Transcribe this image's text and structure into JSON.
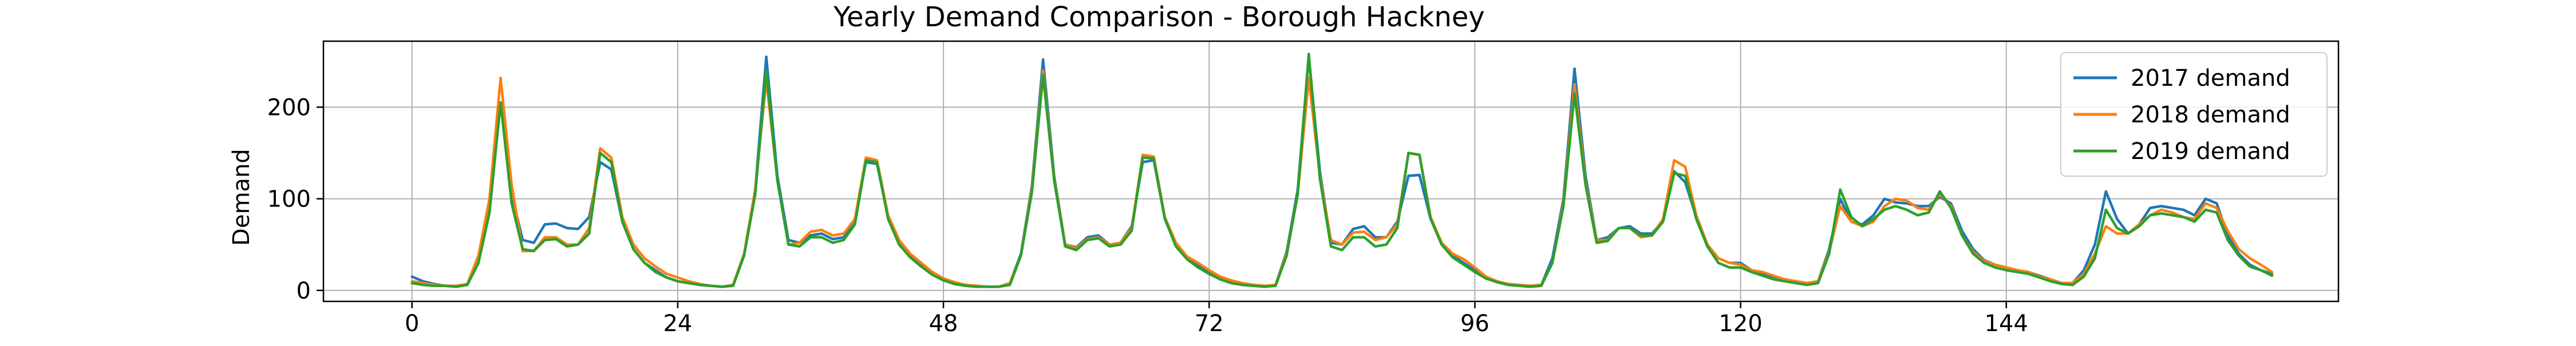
{
  "chart_data": {
    "type": "line",
    "title": "Yearly Demand Comparison - Borough Hackney",
    "xlabel": "",
    "ylabel": "Demand",
    "xlim": [
      -8,
      174
    ],
    "ylim": [
      -12,
      272
    ],
    "xticks": [
      0,
      24,
      48,
      72,
      96,
      120,
      144
    ],
    "yticks": [
      0,
      100,
      200
    ],
    "grid": true,
    "legend": {
      "position": "top-right"
    },
    "series": [
      {
        "name": "2017 demand",
        "color": "#1f77b4",
        "values": [
          15,
          10,
          7,
          5,
          4,
          7,
          35,
          90,
          205,
          105,
          55,
          52,
          72,
          73,
          68,
          67,
          80,
          140,
          132,
          75,
          45,
          30,
          22,
          14,
          10,
          8,
          6,
          5,
          4,
          6,
          40,
          110,
          255,
          125,
          55,
          52,
          60,
          62,
          56,
          58,
          78,
          140,
          138,
          80,
          55,
          38,
          28,
          18,
          12,
          8,
          6,
          5,
          4,
          4,
          8,
          40,
          115,
          252,
          125,
          50,
          47,
          58,
          60,
          50,
          52,
          70,
          140,
          142,
          78,
          50,
          36,
          28,
          20,
          14,
          10,
          8,
          6,
          4,
          6,
          42,
          110,
          255,
          130,
          52,
          50,
          67,
          70,
          58,
          58,
          75,
          125,
          126,
          78,
          52,
          38,
          30,
          22,
          14,
          10,
          7,
          6,
          5,
          6,
          35,
          100,
          242,
          125,
          55,
          58,
          68,
          70,
          62,
          62,
          76,
          130,
          118,
          80,
          50,
          35,
          30,
          30,
          22,
          18,
          15,
          12,
          10,
          8,
          10,
          45,
          100,
          75,
          72,
          82,
          100,
          96,
          95,
          92,
          92,
          102,
          95,
          65,
          45,
          33,
          28,
          25,
          22,
          20,
          16,
          12,
          8,
          8,
          22,
          50,
          108,
          78,
          62,
          72,
          90,
          92,
          90,
          88,
          82,
          100,
          95,
          60,
          40,
          28,
          22,
          18
        ]
      },
      {
        "name": "2018 demand",
        "color": "#ff7f0e",
        "values": [
          10,
          8,
          6,
          5,
          5,
          7,
          38,
          100,
          232,
          115,
          43,
          43,
          58,
          58,
          50,
          50,
          68,
          155,
          145,
          80,
          50,
          35,
          26,
          18,
          14,
          10,
          7,
          5,
          4,
          6,
          40,
          110,
          230,
          120,
          50,
          52,
          64,
          66,
          60,
          62,
          78,
          145,
          142,
          82,
          55,
          40,
          30,
          20,
          13,
          9,
          6,
          5,
          4,
          4,
          8,
          38,
          112,
          240,
          122,
          50,
          46,
          56,
          58,
          50,
          52,
          68,
          148,
          146,
          80,
          52,
          37,
          30,
          22,
          15,
          11,
          8,
          6,
          5,
          6,
          40,
          105,
          232,
          125,
          55,
          50,
          63,
          64,
          55,
          58,
          72,
          150,
          148,
          80,
          52,
          40,
          34,
          25,
          15,
          10,
          7,
          6,
          5,
          6,
          30,
          95,
          225,
          118,
          55,
          55,
          68,
          68,
          58,
          60,
          78,
          142,
          135,
          82,
          50,
          35,
          30,
          28,
          22,
          20,
          16,
          12,
          10,
          8,
          10,
          42,
          92,
          75,
          70,
          75,
          92,
          100,
          98,
          90,
          88,
          105,
          92,
          60,
          42,
          32,
          28,
          25,
          22,
          20,
          15,
          12,
          8,
          8,
          18,
          40,
          70,
          62,
          62,
          72,
          82,
          88,
          85,
          80,
          78,
          95,
          90,
          65,
          45,
          35,
          28,
          20
        ]
      },
      {
        "name": "2019 demand",
        "color": "#2ca02c",
        "values": [
          8,
          6,
          5,
          5,
          4,
          6,
          30,
          85,
          205,
          95,
          45,
          43,
          55,
          56,
          48,
          50,
          62,
          150,
          140,
          75,
          45,
          30,
          20,
          14,
          10,
          8,
          6,
          5,
          4,
          5,
          38,
          105,
          240,
          120,
          50,
          48,
          58,
          58,
          52,
          55,
          72,
          142,
          140,
          78,
          50,
          36,
          26,
          17,
          11,
          7,
          5,
          4,
          4,
          4,
          6,
          38,
          108,
          235,
          120,
          48,
          44,
          55,
          57,
          48,
          50,
          65,
          145,
          144,
          78,
          48,
          34,
          25,
          18,
          12,
          8,
          6,
          5,
          4,
          5,
          38,
          105,
          258,
          122,
          48,
          44,
          58,
          58,
          48,
          50,
          68,
          150,
          148,
          78,
          50,
          36,
          28,
          20,
          13,
          9,
          6,
          5,
          4,
          5,
          30,
          92,
          215,
          115,
          52,
          54,
          68,
          68,
          60,
          60,
          75,
          128,
          125,
          78,
          48,
          30,
          25,
          25,
          20,
          16,
          12,
          10,
          8,
          6,
          8,
          40,
          110,
          80,
          70,
          78,
          88,
          92,
          88,
          82,
          85,
          108,
          90,
          60,
          40,
          30,
          25,
          22,
          20,
          18,
          14,
          10,
          7,
          6,
          15,
          35,
          88,
          68,
          62,
          70,
          82,
          84,
          82,
          80,
          75,
          88,
          85,
          55,
          38,
          26,
          22,
          16
        ]
      }
    ]
  }
}
